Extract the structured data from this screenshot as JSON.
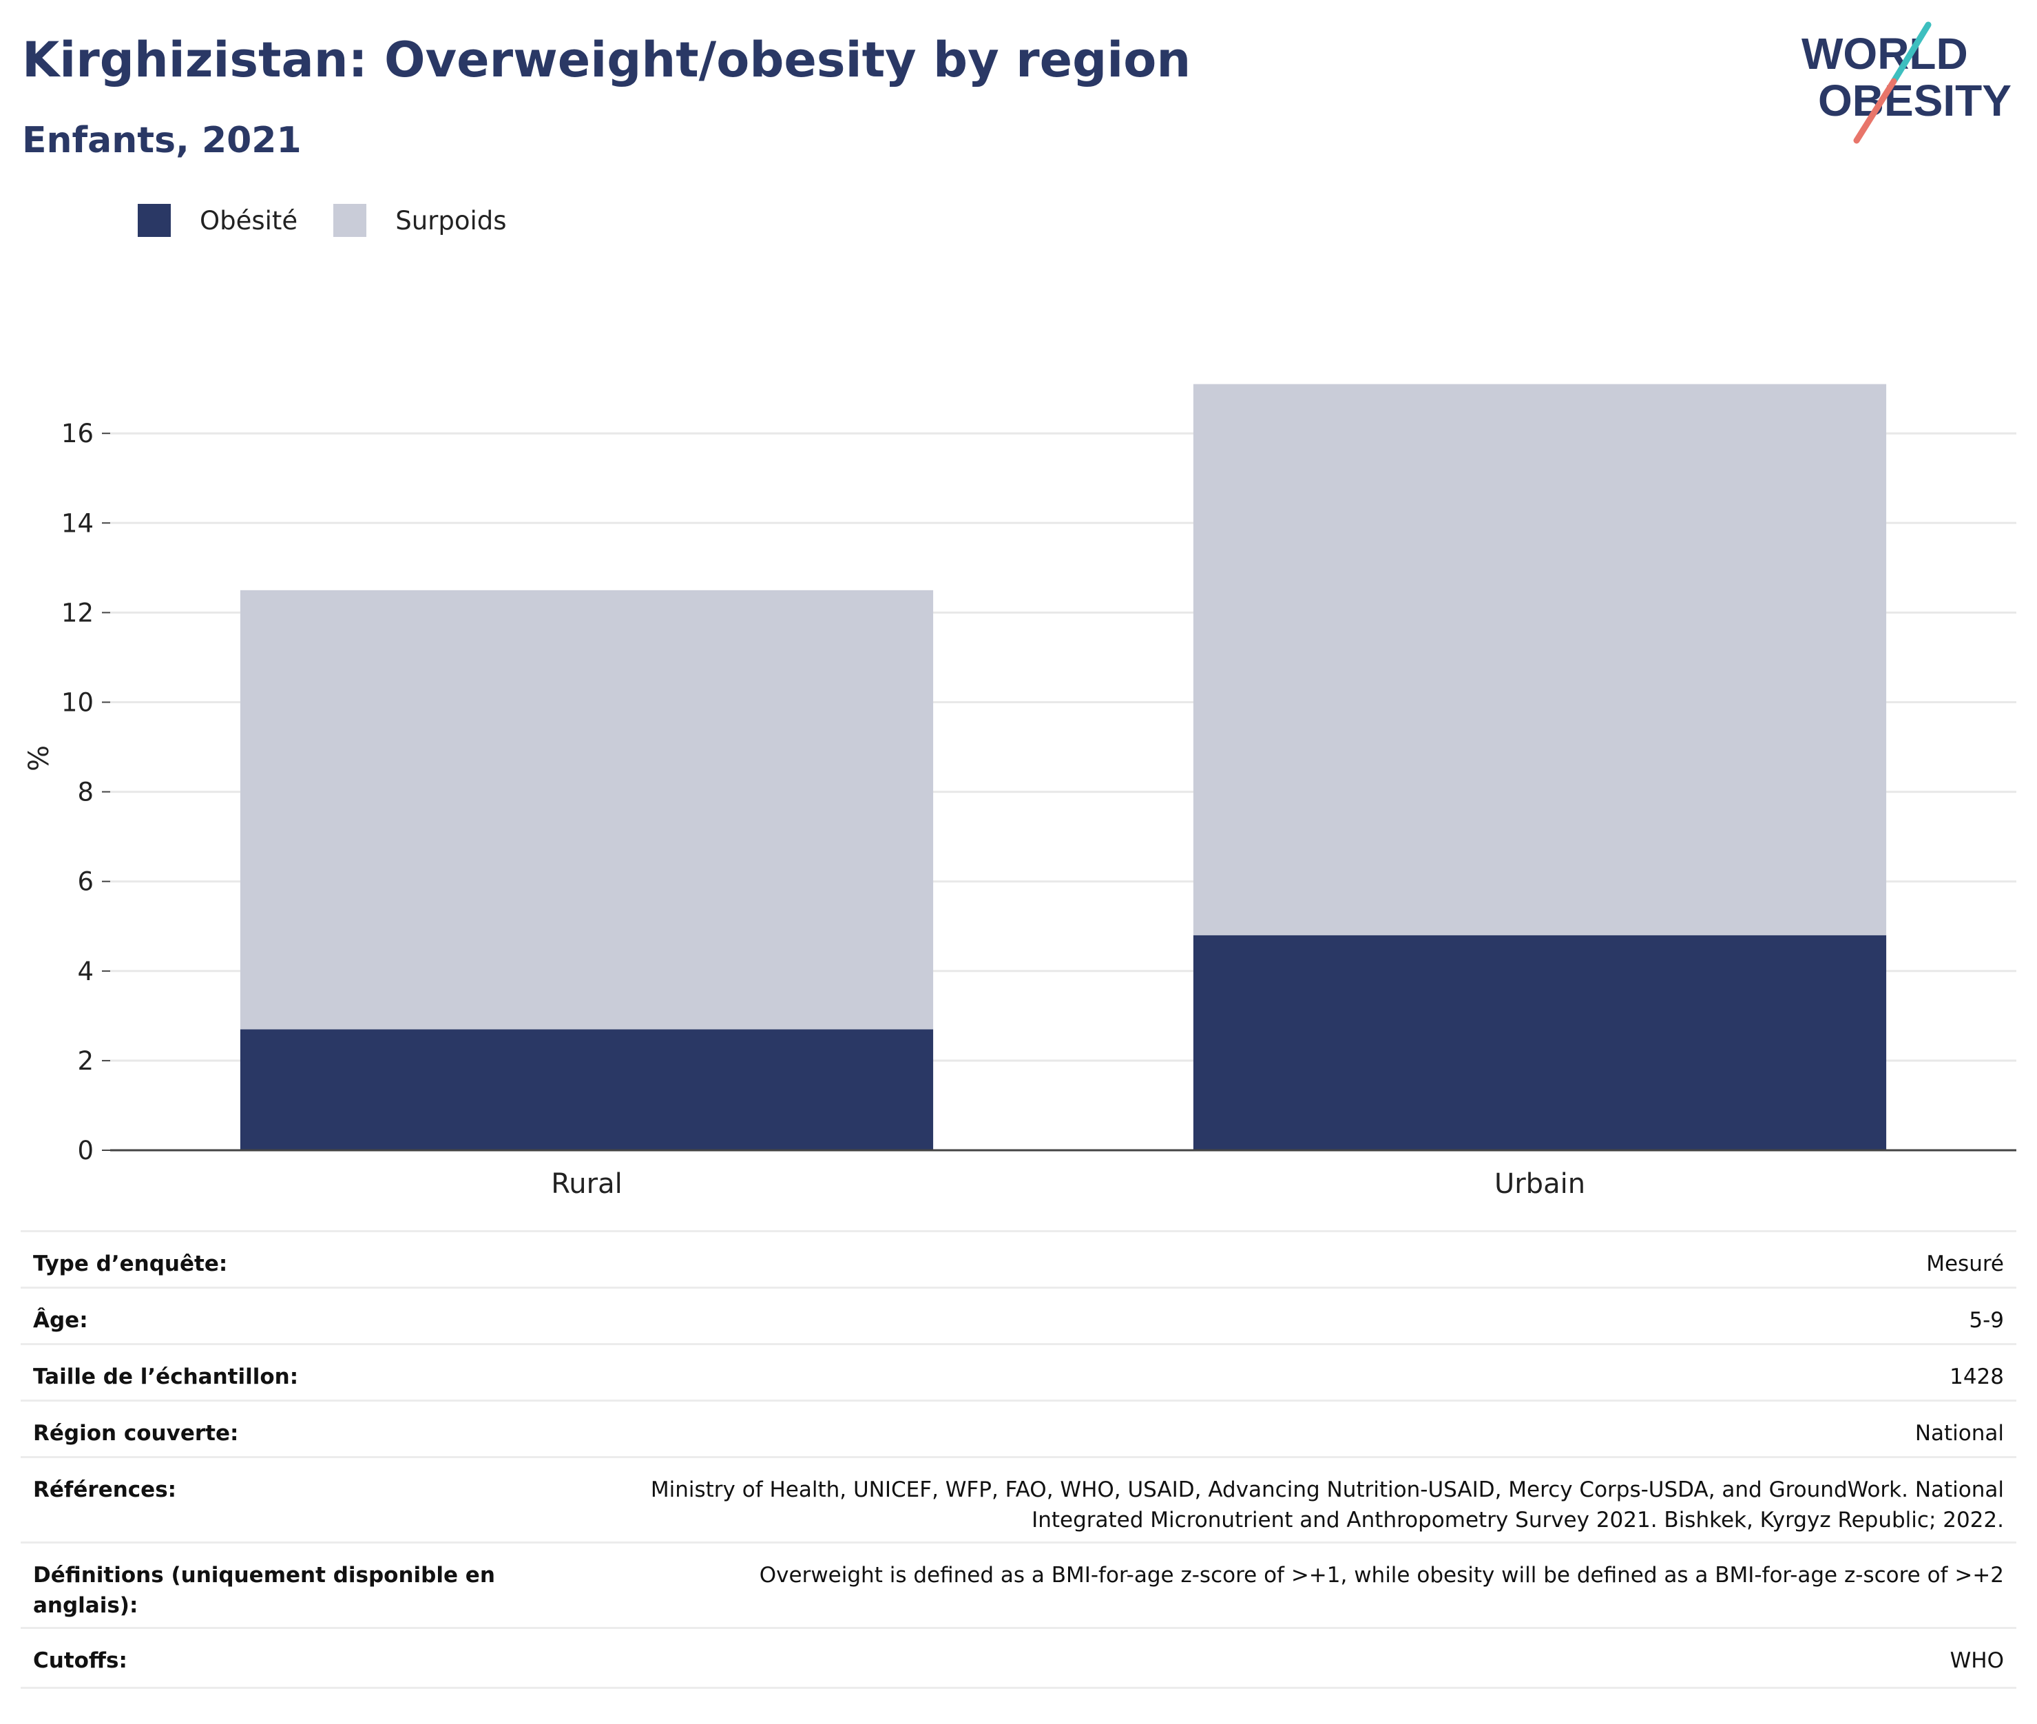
{
  "header": {
    "title": "Kirghizistan: Overweight/obesity by region",
    "subtitle": "Enfants, 2021"
  },
  "logo": {
    "line1": "WORLD",
    "line2": "OBESITY"
  },
  "colors": {
    "obesity": "#2a3865",
    "overweight": "#c9ccd8",
    "grid": "#e8e8e8",
    "axis": "#444444",
    "brand_teal": "#3dbfbf",
    "brand_coral": "#e8756a"
  },
  "chart_data": {
    "type": "bar",
    "stacked": true,
    "categories": [
      "Rural",
      "Urbain"
    ],
    "series": [
      {
        "name": "Obésité",
        "values": [
          2.7,
          4.8
        ]
      },
      {
        "name": "Surpoids",
        "values": [
          9.8,
          12.3
        ]
      }
    ],
    "ylabel": "%",
    "xlabel": "",
    "ylim": [
      0,
      17.5
    ],
    "yticks": [
      0,
      2,
      4,
      6,
      8,
      10,
      12,
      14,
      16
    ],
    "grid": true,
    "legend_position": "top-left"
  },
  "info": [
    {
      "key": "Type d’enquête:",
      "value": "Mesuré"
    },
    {
      "key": "Âge:",
      "value": "5-9"
    },
    {
      "key": "Taille de l’échantillon:",
      "value": "1428"
    },
    {
      "key": "Région couverte:",
      "value": "National"
    },
    {
      "key": "Références:",
      "value": "Ministry of Health, UNICEF, WFP, FAO, WHO, USAID, Advancing Nutrition-USAID, Mercy Corps-USDA, and GroundWork. National Integrated Micronutrient and Anthropometry Survey 2021. Bishkek, Kyrgyz Republic; 2022."
    },
    {
      "key": "Définitions (uniquement disponible en anglais):",
      "value": "Overweight is defined as a BMI-for-age z-score of >+1, while obesity will be defined as a BMI-for-age z-score of >+2"
    },
    {
      "key": "Cutoffs:",
      "value": "WHO"
    }
  ]
}
